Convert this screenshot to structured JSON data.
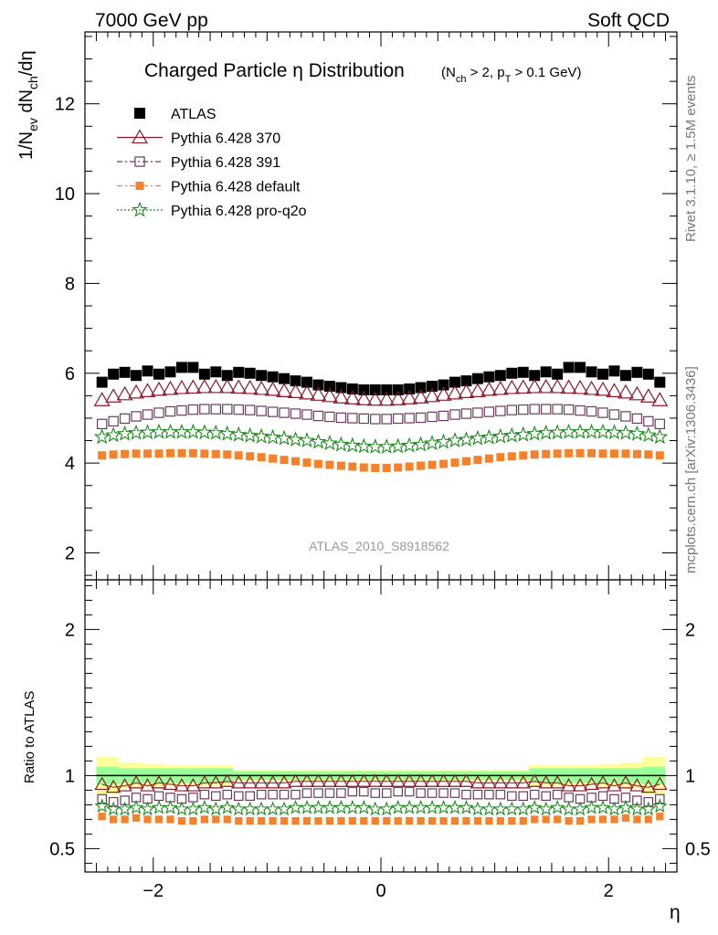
{
  "header": {
    "left": "7000 GeV pp",
    "right": "Soft QCD"
  },
  "side": {
    "right_top": "Rivet 3.1.10, ≥ 1.5M events",
    "right_bottom": "mcplots.cern.ch [arXiv:1306.3436]"
  },
  "chart_data": [
    {
      "type": "scatter",
      "title": "Charged Particle η Distribution",
      "title_sub": "(N_ch > 2, p_T > 0.1 GeV)",
      "ylabel": "1/N_ev dN_ch/dη",
      "watermark": "ATLAS_2010_S8918562",
      "xlim": [
        -2.6,
        2.6
      ],
      "ylim": [
        1.4,
        13.6
      ],
      "yticks": [
        2,
        4,
        6,
        8,
        10,
        12
      ],
      "grid": false,
      "legend_position": "top-left",
      "x": [
        -2.45,
        -2.35,
        -2.25,
        -2.15,
        -2.05,
        -1.95,
        -1.85,
        -1.75,
        -1.65,
        -1.55,
        -1.45,
        -1.35,
        -1.25,
        -1.15,
        -1.05,
        -0.95,
        -0.85,
        -0.75,
        -0.65,
        -0.55,
        -0.45,
        -0.35,
        -0.25,
        -0.15,
        -0.05,
        0.05,
        0.15,
        0.25,
        0.35,
        0.45,
        0.55,
        0.65,
        0.75,
        0.85,
        0.95,
        1.05,
        1.15,
        1.25,
        1.35,
        1.45,
        1.55,
        1.65,
        1.75,
        1.85,
        1.95,
        2.05,
        2.15,
        2.25,
        2.35,
        2.45
      ],
      "series": [
        {
          "name": "ATLAS",
          "color": "#000000",
          "marker": "filled-square",
          "values": [
            5.8,
            5.98,
            6.02,
            5.95,
            6.05,
            5.98,
            6.03,
            6.13,
            6.13,
            5.98,
            6.03,
            5.95,
            6.02,
            6.0,
            5.95,
            5.92,
            5.88,
            5.83,
            5.8,
            5.74,
            5.71,
            5.68,
            5.65,
            5.63,
            5.63,
            5.63,
            5.63,
            5.65,
            5.68,
            5.71,
            5.74,
            5.8,
            5.83,
            5.88,
            5.92,
            5.95,
            6.0,
            6.02,
            5.95,
            6.03,
            5.98,
            6.13,
            6.13,
            6.03,
            5.98,
            6.05,
            5.95,
            6.02,
            5.98,
            5.8
          ]
        },
        {
          "name": "Pythia 6.428 370",
          "color": "#8b1a2b",
          "marker": "open-triangle",
          "values": [
            5.4,
            5.48,
            5.53,
            5.57,
            5.6,
            5.63,
            5.65,
            5.67,
            5.68,
            5.69,
            5.69,
            5.69,
            5.68,
            5.67,
            5.65,
            5.63,
            5.6,
            5.58,
            5.55,
            5.52,
            5.49,
            5.46,
            5.44,
            5.42,
            5.41,
            5.41,
            5.42,
            5.44,
            5.46,
            5.49,
            5.52,
            5.55,
            5.58,
            5.6,
            5.63,
            5.65,
            5.67,
            5.68,
            5.69,
            5.69,
            5.69,
            5.68,
            5.67,
            5.65,
            5.63,
            5.6,
            5.57,
            5.53,
            5.48,
            5.4
          ]
        },
        {
          "name": "Pythia 6.428 391",
          "color": "#6b3a5c",
          "marker": "open-square",
          "values": [
            4.87,
            4.93,
            4.99,
            5.04,
            5.08,
            5.12,
            5.15,
            5.17,
            5.19,
            5.2,
            5.2,
            5.2,
            5.19,
            5.18,
            5.16,
            5.14,
            5.12,
            5.1,
            5.08,
            5.05,
            5.03,
            5.01,
            5.0,
            4.99,
            4.98,
            4.98,
            4.99,
            5.0,
            5.01,
            5.03,
            5.05,
            5.08,
            5.1,
            5.12,
            5.14,
            5.16,
            5.18,
            5.19,
            5.2,
            5.2,
            5.2,
            5.19,
            5.17,
            5.15,
            5.12,
            5.08,
            5.04,
            4.99,
            4.93,
            4.87
          ]
        },
        {
          "name": "Pythia 6.428 default",
          "color": "#f5822a",
          "marker": "filled-small-square",
          "values": [
            4.17,
            4.19,
            4.2,
            4.21,
            4.21,
            4.21,
            4.22,
            4.22,
            4.22,
            4.21,
            4.2,
            4.19,
            4.17,
            4.15,
            4.13,
            4.1,
            4.07,
            4.04,
            4.01,
            3.98,
            3.96,
            3.94,
            3.92,
            3.9,
            3.89,
            3.89,
            3.9,
            3.92,
            3.94,
            3.96,
            3.98,
            4.01,
            4.04,
            4.07,
            4.1,
            4.13,
            4.15,
            4.17,
            4.19,
            4.2,
            4.21,
            4.22,
            4.22,
            4.22,
            4.21,
            4.21,
            4.21,
            4.2,
            4.19,
            4.17
          ]
        },
        {
          "name": "Pythia 6.428 pro-q2o",
          "color": "#1a8a1a",
          "marker": "open-star",
          "values": [
            4.58,
            4.62,
            4.65,
            4.67,
            4.68,
            4.69,
            4.69,
            4.69,
            4.69,
            4.68,
            4.67,
            4.65,
            4.63,
            4.61,
            4.59,
            4.57,
            4.55,
            4.52,
            4.5,
            4.47,
            4.44,
            4.41,
            4.39,
            4.37,
            4.36,
            4.36,
            4.37,
            4.39,
            4.41,
            4.44,
            4.47,
            4.5,
            4.52,
            4.55,
            4.57,
            4.59,
            4.61,
            4.63,
            4.65,
            4.67,
            4.68,
            4.69,
            4.69,
            4.69,
            4.69,
            4.68,
            4.67,
            4.65,
            4.62,
            4.58
          ]
        }
      ]
    },
    {
      "type": "scatter",
      "ylabel": "Ratio to ATLAS",
      "xlabel": "η",
      "xlim": [
        -2.6,
        2.6
      ],
      "ylim": [
        0.34,
        2.34
      ],
      "yticks": [
        0.5,
        1,
        2
      ],
      "xticks": [
        -2,
        0,
        2
      ],
      "reference": 1,
      "bands": [
        {
          "label": "ATLAS uncertainty (outer)",
          "color": "#ffff99",
          "edges": [
            -2.5,
            -2.3,
            -2.1,
            -1.9,
            -1.7,
            -1.5,
            -1.3,
            1.3,
            1.5,
            1.7,
            1.9,
            2.1,
            2.3,
            2.5
          ],
          "half_width": [
            0.13,
            0.09,
            0.08,
            0.07,
            0.07,
            0.07,
            0.04,
            0.07,
            0.07,
            0.07,
            0.08,
            0.09,
            0.13
          ]
        },
        {
          "label": "ATLAS uncertainty (inner)",
          "color": "#99ff99",
          "edges": [
            -2.5,
            -2.3,
            -2.1,
            -1.9,
            -1.7,
            -1.5,
            -1.3,
            1.3,
            1.5,
            1.7,
            1.9,
            2.1,
            2.3,
            2.5
          ],
          "half_width": [
            0.06,
            0.05,
            0.05,
            0.05,
            0.05,
            0.05,
            0.03,
            0.05,
            0.05,
            0.05,
            0.05,
            0.05,
            0.06
          ]
        }
      ],
      "x": [
        -2.45,
        -2.35,
        -2.25,
        -2.15,
        -2.05,
        -1.95,
        -1.85,
        -1.75,
        -1.65,
        -1.55,
        -1.45,
        -1.35,
        -1.25,
        -1.15,
        -1.05,
        -0.95,
        -0.85,
        -0.75,
        -0.65,
        -0.55,
        -0.45,
        -0.35,
        -0.25,
        -0.15,
        -0.05,
        0.05,
        0.15,
        0.25,
        0.35,
        0.45,
        0.55,
        0.65,
        0.75,
        0.85,
        0.95,
        1.05,
        1.15,
        1.25,
        1.35,
        1.45,
        1.55,
        1.65,
        1.75,
        1.85,
        1.95,
        2.05,
        2.15,
        2.25,
        2.35,
        2.45
      ],
      "series": [
        {
          "name": "Pythia 6.428 370",
          "color": "#8b1a2b",
          "marker": "open-triangle",
          "values": [
            0.94,
            0.92,
            0.93,
            0.95,
            0.93,
            0.95,
            0.94,
            0.93,
            0.93,
            0.95,
            0.95,
            0.96,
            0.95,
            0.95,
            0.95,
            0.95,
            0.95,
            0.96,
            0.96,
            0.96,
            0.96,
            0.96,
            0.96,
            0.96,
            0.96,
            0.96,
            0.96,
            0.96,
            0.96,
            0.96,
            0.96,
            0.96,
            0.96,
            0.95,
            0.95,
            0.95,
            0.95,
            0.95,
            0.96,
            0.95,
            0.95,
            0.93,
            0.93,
            0.94,
            0.95,
            0.93,
            0.95,
            0.93,
            0.92,
            0.94
          ]
        },
        {
          "name": "Pythia 6.428 391",
          "color": "#6b3a5c",
          "marker": "open-square",
          "values": [
            0.84,
            0.82,
            0.83,
            0.85,
            0.84,
            0.86,
            0.85,
            0.84,
            0.85,
            0.87,
            0.86,
            0.87,
            0.86,
            0.86,
            0.87,
            0.87,
            0.87,
            0.87,
            0.88,
            0.88,
            0.88,
            0.88,
            0.89,
            0.89,
            0.88,
            0.88,
            0.89,
            0.89,
            0.88,
            0.88,
            0.88,
            0.88,
            0.87,
            0.87,
            0.87,
            0.87,
            0.86,
            0.86,
            0.87,
            0.86,
            0.87,
            0.85,
            0.84,
            0.85,
            0.86,
            0.84,
            0.85,
            0.83,
            0.82,
            0.84
          ]
        },
        {
          "name": "Pythia 6.428 default",
          "color": "#f5822a",
          "marker": "filled-small-square",
          "values": [
            0.72,
            0.7,
            0.7,
            0.71,
            0.7,
            0.7,
            0.7,
            0.69,
            0.69,
            0.7,
            0.7,
            0.7,
            0.69,
            0.69,
            0.69,
            0.69,
            0.69,
            0.69,
            0.69,
            0.69,
            0.69,
            0.69,
            0.69,
            0.69,
            0.69,
            0.69,
            0.69,
            0.69,
            0.69,
            0.69,
            0.69,
            0.69,
            0.69,
            0.69,
            0.69,
            0.69,
            0.69,
            0.69,
            0.7,
            0.7,
            0.7,
            0.69,
            0.69,
            0.7,
            0.7,
            0.7,
            0.71,
            0.7,
            0.7,
            0.72
          ]
        },
        {
          "name": "Pythia 6.428 pro-q2o",
          "color": "#1a8a1a",
          "marker": "open-star",
          "values": [
            0.79,
            0.77,
            0.77,
            0.78,
            0.77,
            0.78,
            0.78,
            0.77,
            0.77,
            0.78,
            0.77,
            0.78,
            0.77,
            0.77,
            0.77,
            0.77,
            0.77,
            0.78,
            0.78,
            0.78,
            0.78,
            0.78,
            0.78,
            0.78,
            0.77,
            0.77,
            0.78,
            0.78,
            0.78,
            0.78,
            0.78,
            0.78,
            0.78,
            0.77,
            0.77,
            0.77,
            0.77,
            0.77,
            0.78,
            0.77,
            0.78,
            0.77,
            0.77,
            0.78,
            0.78,
            0.77,
            0.78,
            0.77,
            0.77,
            0.79
          ]
        }
      ]
    }
  ]
}
